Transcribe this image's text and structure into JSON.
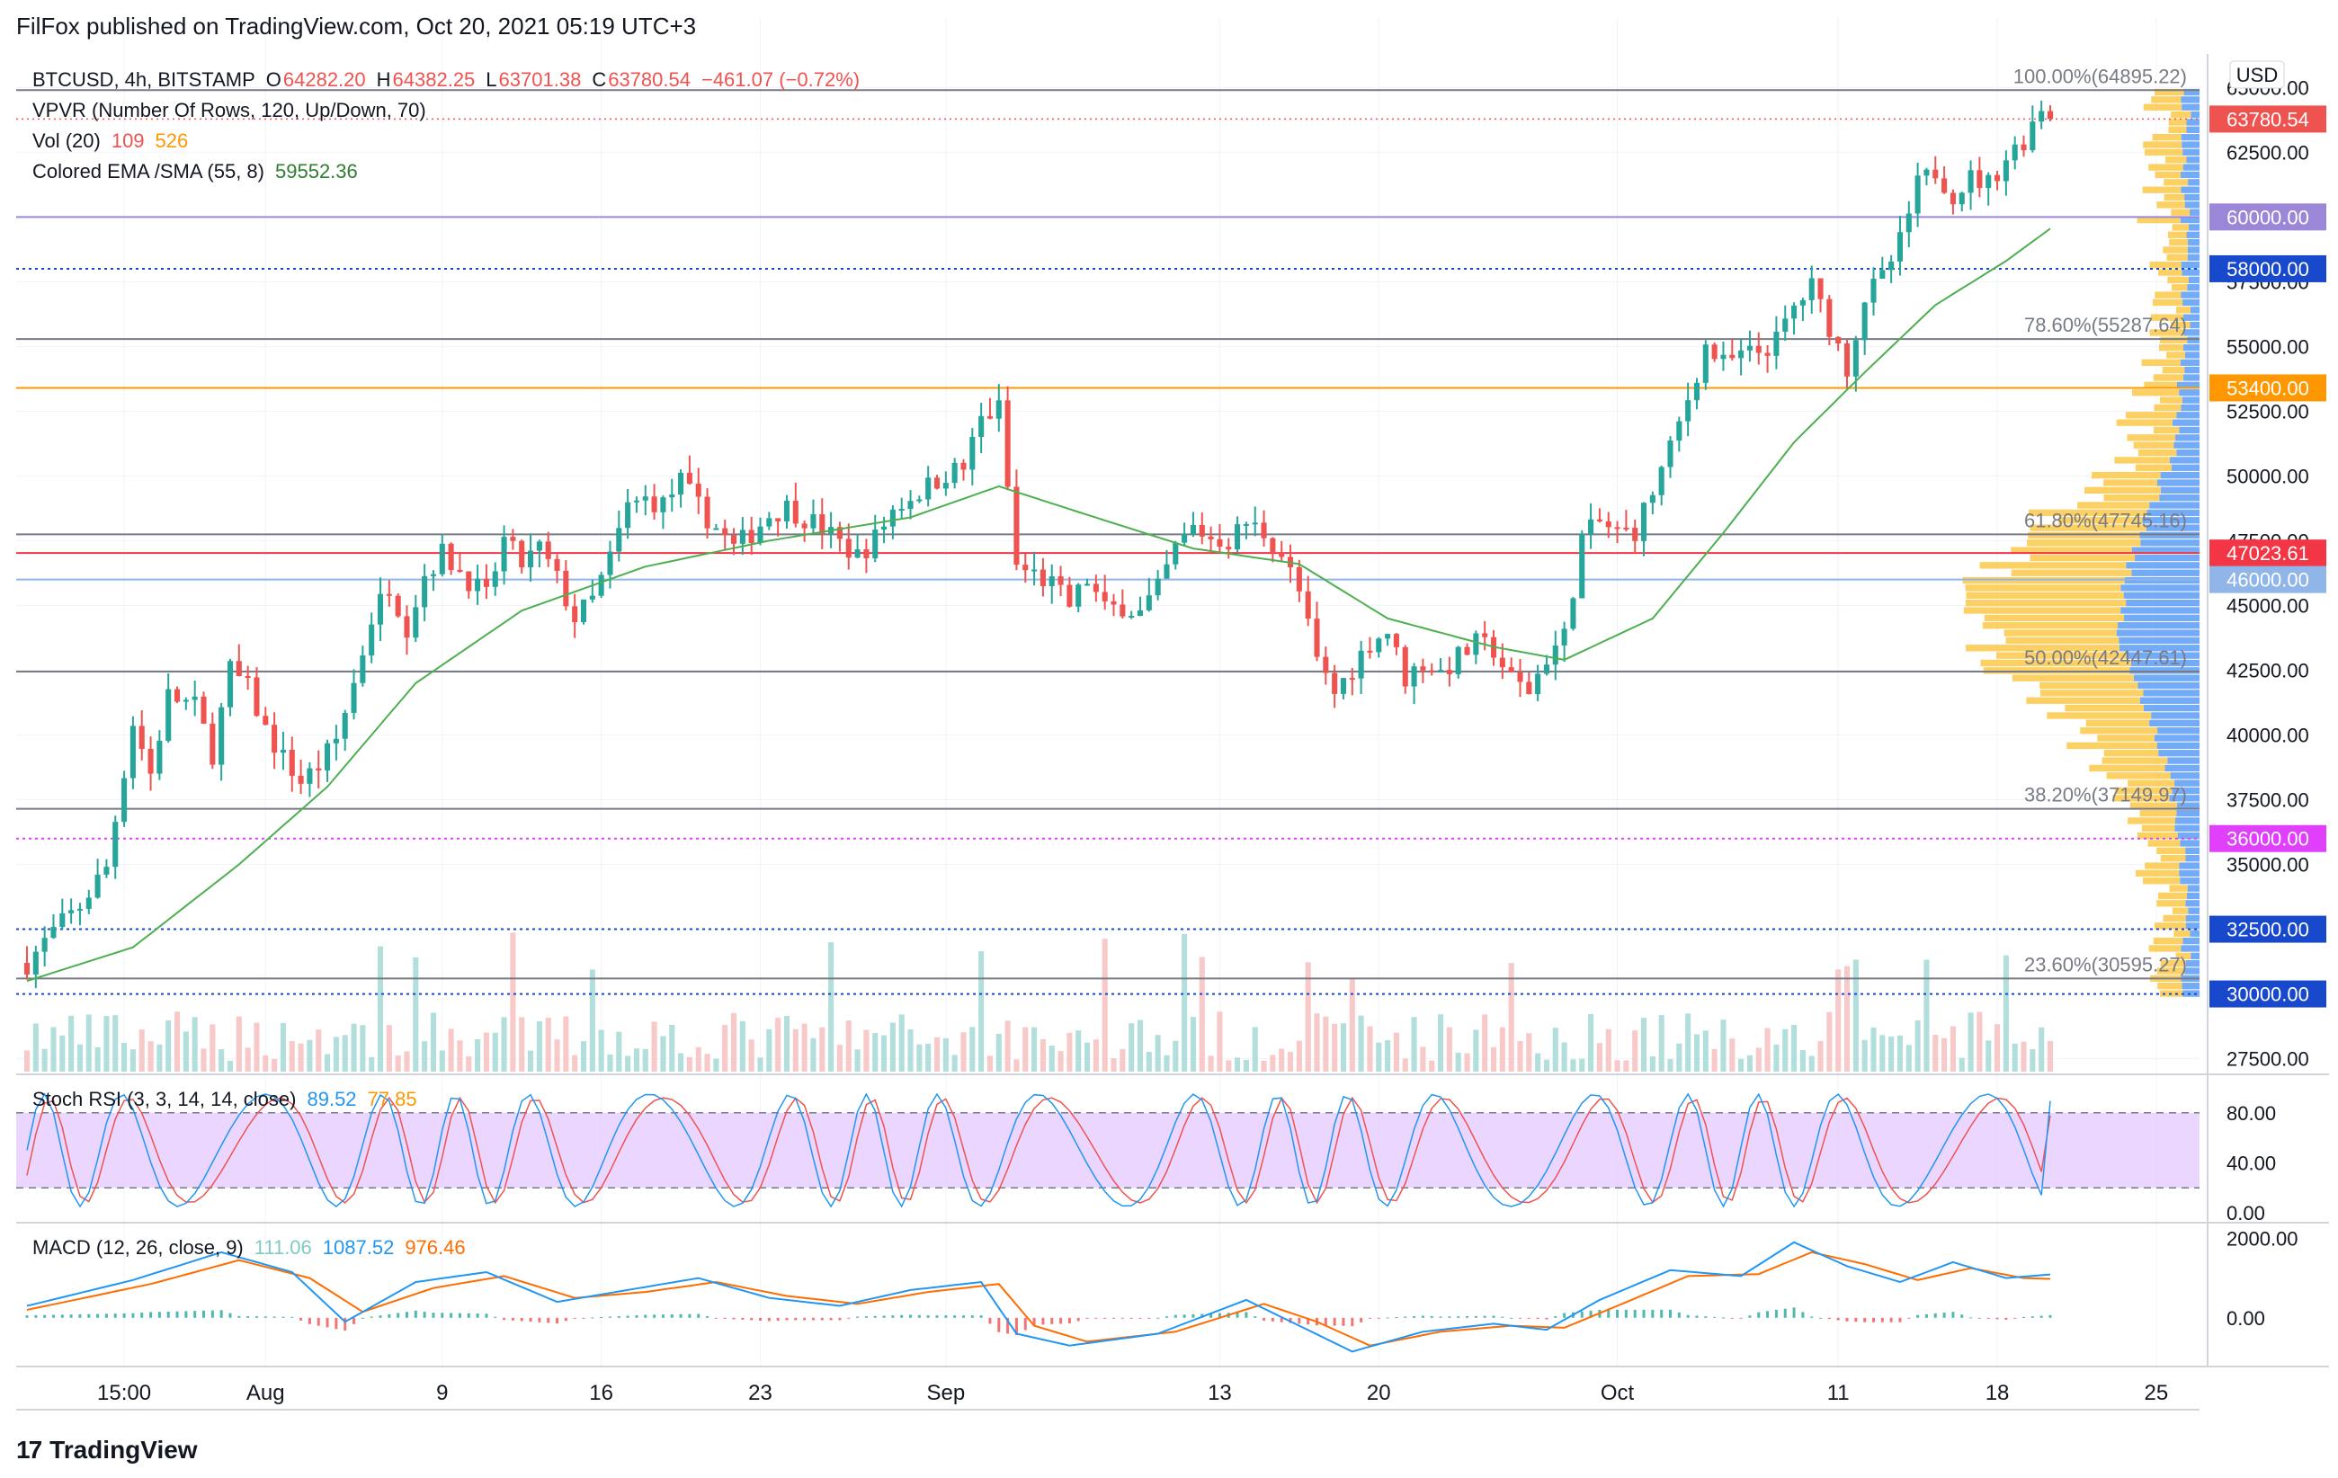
{
  "header": {
    "published": "FilFox published on TradingView.com, Oct 20, 2021 05:19 UTC+3"
  },
  "footer": {
    "brand": "TradingView",
    "brand_mark": "17"
  },
  "legend": {
    "symbol": "BTCUSD, 4h, BITSTAMP",
    "o_label": "O",
    "o": "64282.20",
    "h_label": "H",
    "h": "64382.25",
    "l_label": "L",
    "l": "63701.38",
    "c_label": "C",
    "c": "63780.54",
    "change": "−461.07 (−0.72%)",
    "vpvr": "VPVR (Number Of Rows, 120, Up/Down, 70)",
    "vol": "Vol (20)",
    "vol_a": "109",
    "vol_b": "526",
    "ema": "Colored EMA /SMA (55, 8)",
    "ema_value": "59552.36",
    "stoch": "Stoch RSI (3, 3, 14, 14, close)",
    "stoch_k": "89.52",
    "stoch_d": "77.85",
    "macd": "MACD (12, 26, close, 9)",
    "macd_hist": "111.06",
    "macd_line": "1087.52",
    "macd_signal": "976.46"
  },
  "currency": "USD",
  "colors": {
    "up": "#26a69a",
    "down": "#ef5350",
    "ema": "#4caf50",
    "ema_red": "#ef5350",
    "macd": "#2196f3",
    "signal": "#ff6d00",
    "stoch_k": "#2196f3",
    "stoch_d": "#ef5350",
    "stoch_band": "#e1c4ff",
    "vp_up": "#5b9cf6",
    "vp_down": "#fbc02d"
  },
  "chart_data": {
    "type": "candlestick",
    "x_axis_ticks": [
      "15:00",
      "Aug",
      "9",
      "16",
      "23",
      "Sep",
      "13",
      "20",
      "Oct",
      "11",
      "18",
      "25"
    ],
    "y_axis_ticks": [
      "27500.00",
      "32500.00",
      "35000.00",
      "37500.00",
      "40000.00",
      "42500.00",
      "45000.00",
      "47500.00",
      "50000.00",
      "52500.00",
      "55000.00",
      "57500.00",
      "60000.00",
      "62500.00",
      "65000.00"
    ],
    "ylim": [
      27000,
      65600
    ],
    "price_path": [
      {
        "t": 0,
        "p": 31200
      },
      {
        "t": 3,
        "p": 32400
      },
      {
        "t": 6,
        "p": 33400
      },
      {
        "t": 9,
        "p": 34900
      },
      {
        "t": 12,
        "p": 40500
      },
      {
        "t": 14,
        "p": 38500
      },
      {
        "t": 16,
        "p": 41500
      },
      {
        "t": 19,
        "p": 41100
      },
      {
        "t": 21,
        "p": 39300
      },
      {
        "t": 23,
        "p": 42500
      },
      {
        "t": 25,
        "p": 41800
      },
      {
        "t": 27,
        "p": 40200
      },
      {
        "t": 29,
        "p": 39100
      },
      {
        "t": 31,
        "p": 38200
      },
      {
        "t": 33,
        "p": 38800
      },
      {
        "t": 35,
        "p": 39800
      },
      {
        "t": 37,
        "p": 42000
      },
      {
        "t": 39,
        "p": 44500
      },
      {
        "t": 41,
        "p": 45800
      },
      {
        "t": 43,
        "p": 44200
      },
      {
        "t": 45,
        "p": 46200
      },
      {
        "t": 47,
        "p": 47000
      },
      {
        "t": 50,
        "p": 46000
      },
      {
        "t": 52,
        "p": 45300
      },
      {
        "t": 54,
        "p": 47500
      },
      {
        "t": 56,
        "p": 46600
      },
      {
        "t": 58,
        "p": 47200
      },
      {
        "t": 60,
        "p": 46000
      },
      {
        "t": 62,
        "p": 44500
      },
      {
        "t": 64,
        "p": 45200
      },
      {
        "t": 66,
        "p": 46800
      },
      {
        "t": 68,
        "p": 48800
      },
      {
        "t": 70,
        "p": 49100
      },
      {
        "t": 72,
        "p": 48900
      },
      {
        "t": 74,
        "p": 49800
      },
      {
        "t": 76,
        "p": 48800
      },
      {
        "t": 78,
        "p": 48000
      },
      {
        "t": 80,
        "p": 47200
      },
      {
        "t": 82,
        "p": 47800
      },
      {
        "t": 84,
        "p": 48500
      },
      {
        "t": 86,
        "p": 48800
      },
      {
        "t": 88,
        "p": 48400
      },
      {
        "t": 90,
        "p": 48000
      },
      {
        "t": 92,
        "p": 47400
      },
      {
        "t": 94,
        "p": 46900
      },
      {
        "t": 96,
        "p": 47600
      },
      {
        "t": 98,
        "p": 48700
      },
      {
        "t": 100,
        "p": 49200
      },
      {
        "t": 102,
        "p": 49600
      },
      {
        "t": 104,
        "p": 50100
      },
      {
        "t": 106,
        "p": 50300
      },
      {
        "t": 108,
        "p": 52200
      },
      {
        "t": 110,
        "p": 52600
      },
      {
        "t": 112,
        "p": 46500
      },
      {
        "t": 114,
        "p": 46200
      },
      {
        "t": 116,
        "p": 45800
      },
      {
        "t": 118,
        "p": 45000
      },
      {
        "t": 120,
        "p": 46000
      },
      {
        "t": 122,
        "p": 44800
      },
      {
        "t": 124,
        "p": 45000
      },
      {
        "t": 126,
        "p": 44700
      },
      {
        "t": 128,
        "p": 45600
      },
      {
        "t": 130,
        "p": 47200
      },
      {
        "t": 132,
        "p": 48000
      },
      {
        "t": 134,
        "p": 47600
      },
      {
        "t": 136,
        "p": 47500
      },
      {
        "t": 138,
        "p": 48200
      },
      {
        "t": 140,
        "p": 47800
      },
      {
        "t": 142,
        "p": 47000
      },
      {
        "t": 144,
        "p": 45500
      },
      {
        "t": 146,
        "p": 42800
      },
      {
        "t": 148,
        "p": 41600
      },
      {
        "t": 150,
        "p": 42600
      },
      {
        "t": 152,
        "p": 43600
      },
      {
        "t": 154,
        "p": 44000
      },
      {
        "t": 156,
        "p": 42200
      },
      {
        "t": 158,
        "p": 42800
      },
      {
        "t": 160,
        "p": 42400
      },
      {
        "t": 162,
        "p": 43000
      },
      {
        "t": 164,
        "p": 43500
      },
      {
        "t": 166,
        "p": 43300
      },
      {
        "t": 168,
        "p": 42100
      },
      {
        "t": 170,
        "p": 41700
      },
      {
        "t": 172,
        "p": 43000
      },
      {
        "t": 174,
        "p": 43800
      },
      {
        "t": 176,
        "p": 47600
      },
      {
        "t": 178,
        "p": 48200
      },
      {
        "t": 180,
        "p": 47800
      },
      {
        "t": 182,
        "p": 47900
      },
      {
        "t": 184,
        "p": 49400
      },
      {
        "t": 186,
        "p": 51000
      },
      {
        "t": 188,
        "p": 53000
      },
      {
        "t": 190,
        "p": 55000
      },
      {
        "t": 192,
        "p": 54300
      },
      {
        "t": 194,
        "p": 54600
      },
      {
        "t": 196,
        "p": 54800
      },
      {
        "t": 198,
        "p": 55200
      },
      {
        "t": 200,
        "p": 56500
      },
      {
        "t": 202,
        "p": 57300
      },
      {
        "t": 204,
        "p": 55800
      },
      {
        "t": 206,
        "p": 54200
      },
      {
        "t": 208,
        "p": 56900
      },
      {
        "t": 210,
        "p": 57600
      },
      {
        "t": 212,
        "p": 59000
      },
      {
        "t": 214,
        "p": 61200
      },
      {
        "t": 216,
        "p": 61800
      },
      {
        "t": 218,
        "p": 60900
      },
      {
        "t": 220,
        "p": 61500
      },
      {
        "t": 222,
        "p": 61300
      },
      {
        "t": 224,
        "p": 62300
      },
      {
        "t": 226,
        "p": 63000
      },
      {
        "t": 228,
        "p": 64300
      },
      {
        "t": 229,
        "p": 63780
      }
    ],
    "ema_path": [
      {
        "t": 0,
        "p": 30500
      },
      {
        "t": 12,
        "p": 31800
      },
      {
        "t": 24,
        "p": 35000
      },
      {
        "t": 34,
        "p": 38000
      },
      {
        "t": 44,
        "p": 42000
      },
      {
        "t": 56,
        "p": 44800
      },
      {
        "t": 70,
        "p": 46500
      },
      {
        "t": 84,
        "p": 47500
      },
      {
        "t": 100,
        "p": 48400
      },
      {
        "t": 110,
        "p": 49600
      },
      {
        "t": 120,
        "p": 48500
      },
      {
        "t": 132,
        "p": 47200
      },
      {
        "t": 144,
        "p": 46600
      },
      {
        "t": 154,
        "p": 44500
      },
      {
        "t": 166,
        "p": 43400
      },
      {
        "t": 174,
        "p": 42900
      },
      {
        "t": 184,
        "p": 44500
      },
      {
        "t": 192,
        "p": 47800
      },
      {
        "t": 200,
        "p": 51300
      },
      {
        "t": 208,
        "p": 54000
      },
      {
        "t": 216,
        "p": 56600
      },
      {
        "t": 224,
        "p": 58300
      },
      {
        "t": 229,
        "p": 59550
      }
    ],
    "levels": [
      {
        "label": "60000.00",
        "value": 60000,
        "color": "#9c86d8",
        "style": "solid"
      },
      {
        "label": "58000.00",
        "value": 58000,
        "color": "#1848cc",
        "style": "dotted"
      },
      {
        "label": "53400.00",
        "value": 53400,
        "color": "#ff9800",
        "style": "solid"
      },
      {
        "label": "47023.61",
        "value": 47023.61,
        "color": "#f23645",
        "style": "solid"
      },
      {
        "label": "46000.00",
        "value": 46000,
        "color": "#90b5e8",
        "style": "solid"
      },
      {
        "label": "36000.00",
        "value": 36000,
        "color": "#e040fb",
        "style": "dotted"
      },
      {
        "label": "32500.00",
        "value": 32500,
        "color": "#1848cc",
        "style": "dotted"
      },
      {
        "label": "30000.00",
        "value": 30000,
        "color": "#1848cc",
        "style": "dotted"
      }
    ],
    "fib": [
      {
        "label": "100.00%(64895.22)",
        "value": 64895.22
      },
      {
        "label": "78.60%(55287.64)",
        "value": 55287.64
      },
      {
        "label": "61.80%(47745.16)",
        "value": 47745.16
      },
      {
        "label": "50.00%(42447.61)",
        "value": 42447.61
      },
      {
        "label": "38.20%(37149.97)",
        "value": 37149.97
      },
      {
        "label": "23.60%(30595.27)",
        "value": 30595.27
      }
    ],
    "last_price": {
      "label": "63780.54",
      "value": 63780.54
    },
    "stoch_ticks": [
      "0.00",
      "40.00",
      "80.00"
    ],
    "stoch_band": [
      20,
      80
    ],
    "macd_ticks": [
      "0.00",
      "2000.00"
    ],
    "macd_range": [
      -1000,
      2100
    ],
    "macd_path": [
      {
        "t": 0,
        "m": 300
      },
      {
        "t": 12,
        "m": 950
      },
      {
        "t": 22,
        "m": 1650
      },
      {
        "t": 30,
        "m": 1150
      },
      {
        "t": 36,
        "m": -100
      },
      {
        "t": 44,
        "m": 900
      },
      {
        "t": 52,
        "m": 1150
      },
      {
        "t": 60,
        "m": 400
      },
      {
        "t": 68,
        "m": 700
      },
      {
        "t": 76,
        "m": 1000
      },
      {
        "t": 84,
        "m": 500
      },
      {
        "t": 92,
        "m": 300
      },
      {
        "t": 100,
        "m": 700
      },
      {
        "t": 108,
        "m": 900
      },
      {
        "t": 112,
        "m": -400
      },
      {
        "t": 118,
        "m": -700
      },
      {
        "t": 128,
        "m": -400
      },
      {
        "t": 138,
        "m": 450
      },
      {
        "t": 144,
        "m": -200
      },
      {
        "t": 150,
        "m": -850
      },
      {
        "t": 158,
        "m": -350
      },
      {
        "t": 166,
        "m": -150
      },
      {
        "t": 172,
        "m": -300
      },
      {
        "t": 178,
        "m": 450
      },
      {
        "t": 186,
        "m": 1200
      },
      {
        "t": 194,
        "m": 1050
      },
      {
        "t": 200,
        "m": 1900
      },
      {
        "t": 206,
        "m": 1300
      },
      {
        "t": 212,
        "m": 900
      },
      {
        "t": 218,
        "m": 1400
      },
      {
        "t": 224,
        "m": 1000
      },
      {
        "t": 229,
        "m": 1090
      }
    ],
    "signal_path": [
      {
        "t": 0,
        "m": 200
      },
      {
        "t": 14,
        "m": 850
      },
      {
        "t": 24,
        "m": 1450
      },
      {
        "t": 32,
        "m": 1000
      },
      {
        "t": 38,
        "m": 150
      },
      {
        "t": 46,
        "m": 750
      },
      {
        "t": 54,
        "m": 1050
      },
      {
        "t": 62,
        "m": 500
      },
      {
        "t": 70,
        "m": 650
      },
      {
        "t": 78,
        "m": 900
      },
      {
        "t": 86,
        "m": 550
      },
      {
        "t": 94,
        "m": 350
      },
      {
        "t": 102,
        "m": 650
      },
      {
        "t": 110,
        "m": 850
      },
      {
        "t": 114,
        "m": -200
      },
      {
        "t": 120,
        "m": -600
      },
      {
        "t": 130,
        "m": -350
      },
      {
        "t": 140,
        "m": 350
      },
      {
        "t": 146,
        "m": -100
      },
      {
        "t": 152,
        "m": -700
      },
      {
        "t": 160,
        "m": -350
      },
      {
        "t": 168,
        "m": -200
      },
      {
        "t": 174,
        "m": -250
      },
      {
        "t": 180,
        "m": 300
      },
      {
        "t": 188,
        "m": 1050
      },
      {
        "t": 196,
        "m": 1100
      },
      {
        "t": 202,
        "m": 1650
      },
      {
        "t": 208,
        "m": 1350
      },
      {
        "t": 214,
        "m": 950
      },
      {
        "t": 220,
        "m": 1250
      },
      {
        "t": 226,
        "m": 1000
      },
      {
        "t": 229,
        "m": 980
      }
    ]
  }
}
